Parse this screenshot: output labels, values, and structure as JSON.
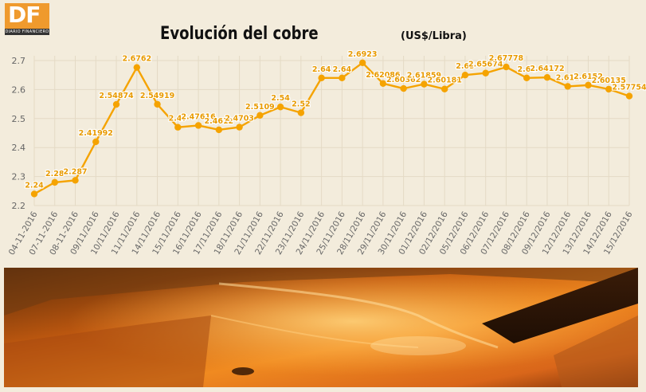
{
  "brand": {
    "logo_letters": "DF",
    "logo_caption": "DIARIO FINANCIERO",
    "accent": "#ef9a2d"
  },
  "header": {
    "title": "Evolución del cobre",
    "subtitle": "(US$/Libra)"
  },
  "colors": {
    "line": "#f5a300",
    "label": "#e89a00",
    "background": "#f3ecdc",
    "grid": "#e4dac5"
  },
  "chart_data": {
    "type": "line",
    "title": "Evolución del cobre",
    "unit_label": "(US$/Libra)",
    "xlabel": "",
    "ylabel": "",
    "ylim": [
      2.2,
      2.7
    ],
    "yticks": [
      "2.2",
      "2.3",
      "2.4",
      "2.5",
      "2.6",
      "2.7"
    ],
    "grid": true,
    "categories": [
      "04-11-2016",
      "07-11-2016",
      "08-11-2016",
      "09/11/2016",
      "10/11/2016",
      "11/11/2016",
      "14/11/2016",
      "15/11/2016",
      "16/11/2016",
      "17/11/2016",
      "18/11/2016",
      "21/11/2016",
      "22/11/2016",
      "23/11/2016",
      "24/11/2016",
      "25/11/2016",
      "28/11/2016",
      "29/11/2016",
      "30/11/2016",
      "01/12/2016",
      "02/12/2016",
      "05/12/2016",
      "06/12/2016",
      "07/12/2016",
      "08/12/2016",
      "09/12/2016",
      "12/12/2016",
      "13/12/2016",
      "14/12/2016",
      "15/12/2016"
    ],
    "values": [
      2.24,
      2.28,
      2.287,
      2.41992,
      2.54874,
      2.6762,
      2.54919,
      2.47,
      2.47616,
      2.4612,
      2.4703,
      2.5109,
      2.54,
      2.52,
      2.64,
      2.64,
      2.6923,
      2.62086,
      2.60362,
      2.61859,
      2.60181,
      2.65,
      2.65674,
      2.67778,
      2.64,
      2.64172,
      2.611,
      2.6152,
      2.60135,
      2.57754
    ],
    "point_labels": [
      "2.24",
      "2.28",
      "2.287",
      "2.41992",
      "2.54874",
      "2.6762",
      "2.54919",
      "2.47",
      "2.47616",
      "2.4612",
      "2.4703",
      "2.5109",
      "2.54",
      "2.52",
      "2.64",
      "2.64",
      "2.6923",
      "2.62086",
      "2.60362",
      "2.61859",
      "2.60181",
      "2.65",
      "2.65674",
      "2.67778",
      "2.64",
      "2.64172",
      "2.611",
      "2.6152",
      "2.60135",
      "2.57754"
    ]
  }
}
